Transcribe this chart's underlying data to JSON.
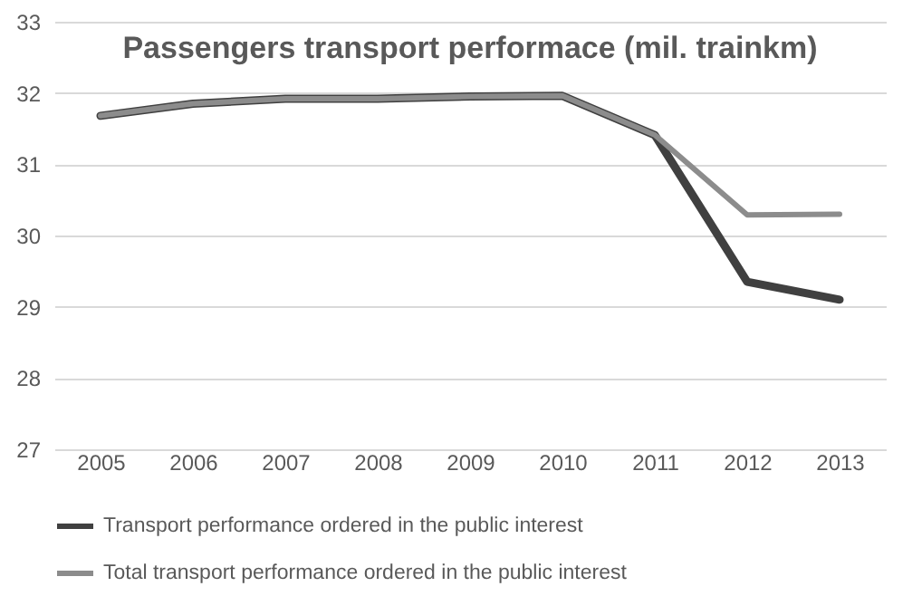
{
  "chart_data": {
    "type": "line",
    "title": "Passengers transport performace (mil. trainkm)",
    "categories": [
      "2005",
      "2006",
      "2007",
      "2008",
      "2009",
      "2010",
      "2011",
      "2012",
      "2013"
    ],
    "series": [
      {
        "name": "Transport performance ordered in the public interest",
        "color": "#404040",
        "values": [
          31.68,
          31.85,
          31.92,
          31.92,
          31.95,
          31.96,
          31.41,
          29.35,
          29.1
        ]
      },
      {
        "name": "Total transport performance ordered in the public interest",
        "color": "#8c8c8c",
        "values": [
          31.68,
          31.85,
          31.92,
          31.92,
          31.95,
          31.96,
          31.41,
          30.29,
          30.3
        ]
      }
    ],
    "ylim": [
      27,
      33
    ],
    "yticks": [
      27,
      28,
      29,
      30,
      31,
      32,
      33
    ],
    "grid": "y",
    "legend": "bottom",
    "marker": "none",
    "line_style": "solid"
  }
}
